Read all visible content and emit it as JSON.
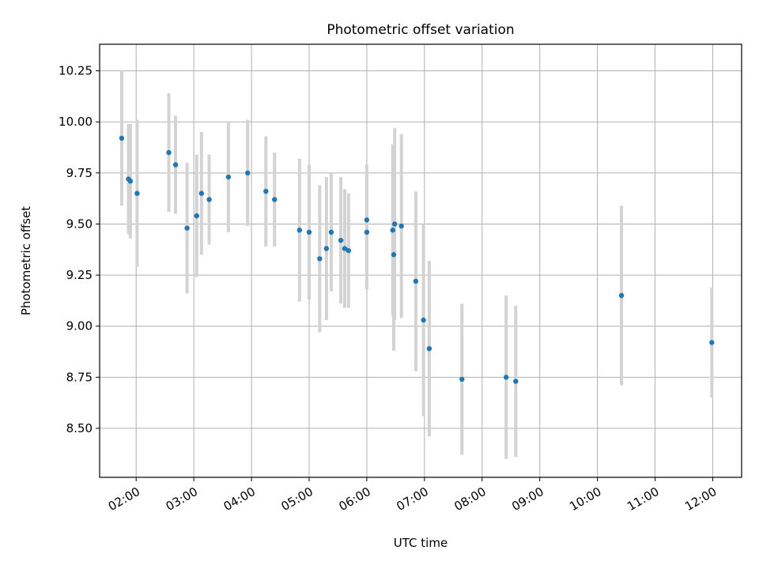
{
  "chart_data": {
    "type": "scatter",
    "title": "Photometric offset variation",
    "xlabel": "UTC time",
    "ylabel": "Photometric offset",
    "xlim": [
      "01:22",
      "12:30"
    ],
    "ylim": [
      8.26,
      10.38
    ],
    "xticks": [
      "02:00",
      "03:00",
      "04:00",
      "05:00",
      "06:00",
      "07:00",
      "08:00",
      "09:00",
      "10:00",
      "11:00",
      "12:00"
    ],
    "yticks": [
      "8.50",
      "8.75",
      "9.00",
      "9.25",
      "9.50",
      "9.75",
      "10.00",
      "10.25"
    ],
    "grid": true,
    "marker_color": "#1f77b4",
    "errorbar_color": "#d3d3d3",
    "points": [
      {
        "x": "01:45",
        "y": 9.92,
        "err": 0.33
      },
      {
        "x": "01:52",
        "y": 9.72,
        "err": 0.27
      },
      {
        "x": "01:54",
        "y": 9.71,
        "err": 0.28
      },
      {
        "x": "02:01",
        "y": 9.65,
        "err": 0.36
      },
      {
        "x": "02:34",
        "y": 9.85,
        "err": 0.29
      },
      {
        "x": "02:41",
        "y": 9.79,
        "err": 0.24
      },
      {
        "x": "02:53",
        "y": 9.48,
        "err": 0.32
      },
      {
        "x": "03:03",
        "y": 9.54,
        "err": 0.3
      },
      {
        "x": "03:08",
        "y": 9.65,
        "err": 0.3
      },
      {
        "x": "03:16",
        "y": 9.62,
        "err": 0.22
      },
      {
        "x": "03:36",
        "y": 9.73,
        "err": 0.27
      },
      {
        "x": "03:56",
        "y": 9.75,
        "err": 0.26
      },
      {
        "x": "04:15",
        "y": 9.66,
        "err": 0.27
      },
      {
        "x": "04:24",
        "y": 9.62,
        "err": 0.23
      },
      {
        "x": "04:50",
        "y": 9.47,
        "err": 0.35
      },
      {
        "x": "05:00",
        "y": 9.46,
        "err": 0.33
      },
      {
        "x": "05:11",
        "y": 9.33,
        "err": 0.36
      },
      {
        "x": "05:18",
        "y": 9.38,
        "err": 0.35
      },
      {
        "x": "05:23",
        "y": 9.46,
        "err": 0.29
      },
      {
        "x": "05:33",
        "y": 9.42,
        "err": 0.31
      },
      {
        "x": "05:37",
        "y": 9.38,
        "err": 0.29
      },
      {
        "x": "05:41",
        "y": 9.37,
        "err": 0.28
      },
      {
        "x": "06:00",
        "y": 9.52,
        "err": 0.27
      },
      {
        "x": "06:00",
        "y": 9.46,
        "err": 0.28
      },
      {
        "x": "06:27",
        "y": 9.47,
        "err": 0.42
      },
      {
        "x": "06:28",
        "y": 9.35,
        "err": 0.47
      },
      {
        "x": "06:29",
        "y": 9.5,
        "err": 0.47
      },
      {
        "x": "06:36",
        "y": 9.49,
        "err": 0.45
      },
      {
        "x": "06:51",
        "y": 9.22,
        "err": 0.44
      },
      {
        "x": "06:59",
        "y": 9.03,
        "err": 0.47
      },
      {
        "x": "07:05",
        "y": 8.89,
        "err": 0.43
      },
      {
        "x": "07:39",
        "y": 8.74,
        "err": 0.37
      },
      {
        "x": "08:25",
        "y": 8.75,
        "err": 0.4
      },
      {
        "x": "08:35",
        "y": 8.73,
        "err": 0.37
      },
      {
        "x": "10:25",
        "y": 9.15,
        "err": 0.44
      },
      {
        "x": "11:59",
        "y": 8.92,
        "err": 0.27
      }
    ]
  }
}
